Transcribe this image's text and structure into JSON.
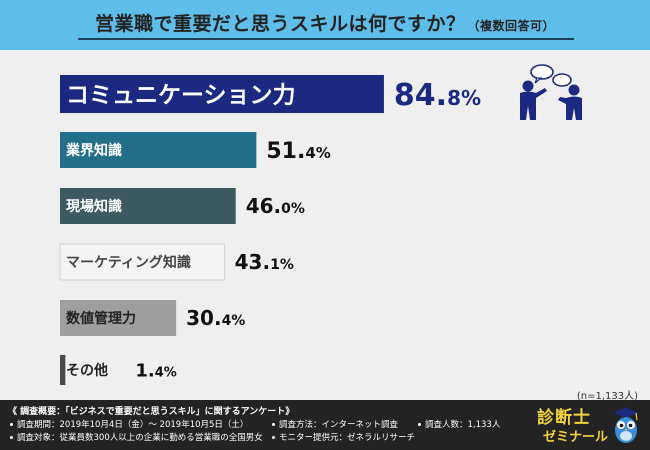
{
  "header": {
    "title": "営業職で重要だと思うスキルは何ですか？",
    "title_note": "（複数回答可）"
  },
  "chart_data": {
    "type": "bar",
    "orientation": "horizontal",
    "categories": [
      "コミュニケーション力",
      "業界知識",
      "現場知識",
      "マーケティング知識",
      "数値管理力",
      "その他"
    ],
    "values": [
      84.8,
      51.4,
      46.0,
      43.1,
      30.4,
      1.4
    ],
    "value_labels": [
      {
        "int": "84.",
        "dec": "8%"
      },
      {
        "int": "51.",
        "dec": "4%"
      },
      {
        "int": "46.",
        "dec": "0%"
      },
      {
        "int": "43.",
        "dec": "1%"
      },
      {
        "int": "30.",
        "dec": "4%"
      },
      {
        "int": "1.",
        "dec": "4%"
      }
    ],
    "bar_colors": [
      "#1b2a80",
      "#236e88",
      "#3c5a5f",
      "#f4f4f4",
      "#9e9e9e",
      "#4a4a4a"
    ],
    "label_colors": [
      "#ffffff",
      "#ffffff",
      "#ffffff",
      "#444444",
      "#222222",
      "#222222"
    ],
    "xlim": [
      0,
      100
    ],
    "title": "営業職で重要だと思うスキルは何ですか？",
    "xlabel": "",
    "ylabel": ""
  },
  "sample_size": "(n=1,133人)",
  "footer": {
    "survey": "《 調査概要：「ビジネスで重要だと思うスキル」に関するアンケート》",
    "period": "調査期間：2019年10月4日（金）〜 2019年10月5日（土）",
    "method": "調査方法：インターネット調査",
    "count": "調査人数：1,133人",
    "target": "調査対象：従業員数300人以上の企業に勤める営業職の全国男女",
    "provider": "モニター提供元：ゼネラルリサーチ"
  },
  "brand": {
    "line1": "診断士",
    "line2": "ゼミナール"
  },
  "icons": [
    "people-talking-icon",
    "owl-mascot-icon"
  ]
}
